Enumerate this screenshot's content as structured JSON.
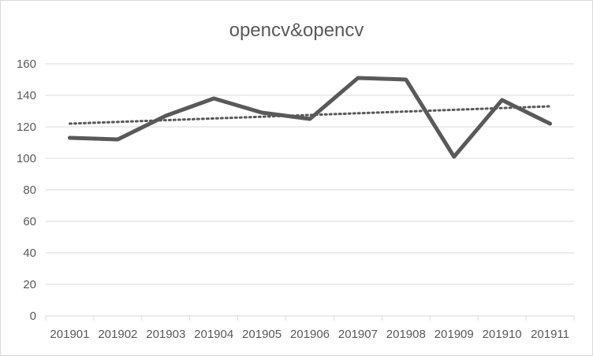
{
  "chart_data": {
    "type": "line",
    "title": "opencv&opencv",
    "xlabel": "",
    "ylabel": "",
    "categories": [
      "201901",
      "201902",
      "201903",
      "201904",
      "201905",
      "201906",
      "201907",
      "201908",
      "201909",
      "201910",
      "201911"
    ],
    "series": [
      {
        "values": [
          113,
          112,
          127,
          138,
          129,
          125,
          151,
          150,
          101,
          137,
          122
        ],
        "color": "#595959",
        "style": "solid"
      }
    ],
    "trendline": {
      "type": "linear",
      "style": "dotted",
      "color": "#595959",
      "start": 122,
      "end": 133
    },
    "ylim": [
      0,
      160
    ],
    "yticks": [
      0,
      20,
      40,
      60,
      80,
      100,
      120,
      140,
      160
    ],
    "grid": "horizontal",
    "legend": "none"
  }
}
